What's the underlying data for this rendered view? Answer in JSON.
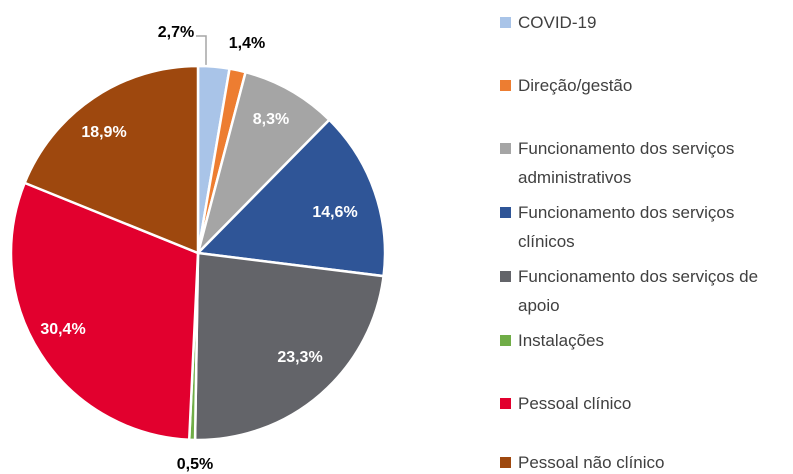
{
  "chart_data": {
    "type": "pie",
    "categories": [
      "COVID-19",
      "Direção/gestão",
      "Funcionamento dos serviços administrativos",
      "Funcionamento dos serviços clínicos",
      "Funcionamento dos serviços de apoio",
      "Instalações",
      "Pessoal clínico",
      "Pessoal não clínico"
    ],
    "values": [
      2.7,
      1.4,
      8.3,
      14.6,
      23.3,
      0.5,
      30.4,
      18.9
    ],
    "value_labels": [
      "2,7%",
      "1,4%",
      "8,3%",
      "14,6%",
      "23,3%",
      "0,5%",
      "30,4%",
      "18,9%"
    ],
    "colors": [
      "#a9c4e8",
      "#ed7d31",
      "#a5a5a5",
      "#2f5597",
      "#636469",
      "#70ad47",
      "#e2002e",
      "#9e480e"
    ],
    "legend": "right"
  }
}
